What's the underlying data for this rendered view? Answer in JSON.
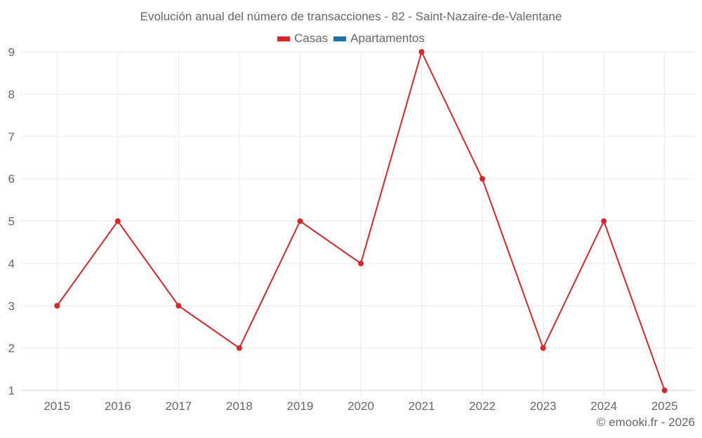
{
  "chart_data": {
    "type": "line",
    "title": "Evolución anual del número de transacciones - 82 - Saint-Nazaire-de-Valentane",
    "xlabel": "",
    "ylabel": "",
    "categories": [
      "2015",
      "2016",
      "2017",
      "2018",
      "2019",
      "2020",
      "2021",
      "2022",
      "2023",
      "2024",
      "2025"
    ],
    "series": [
      {
        "name": "Casas",
        "color": "#d62728",
        "values": [
          3,
          5,
          3,
          2,
          5,
          4,
          9,
          6,
          2,
          5,
          1
        ]
      },
      {
        "name": "Apartamentos",
        "color": "#1f6fa8",
        "values": []
      }
    ],
    "ylim": [
      1,
      9
    ],
    "yticks": [
      1,
      2,
      3,
      4,
      5,
      6,
      7,
      8,
      9
    ],
    "grid": true,
    "legend_position": "top"
  },
  "legend": [
    {
      "label": "Casas",
      "color": "#d62728"
    },
    {
      "label": "Apartamentos",
      "color": "#1f6fa8"
    }
  ],
  "credit": "© emooki.fr - 2026"
}
